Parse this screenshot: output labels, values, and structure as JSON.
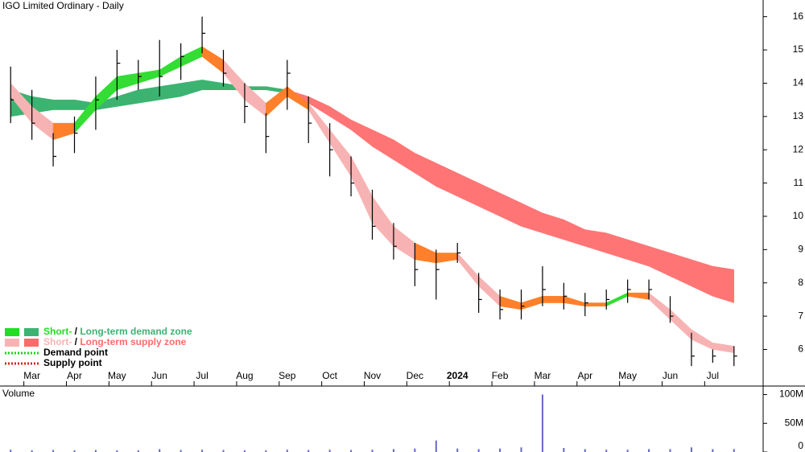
{
  "chart_data": [
    {
      "type": "ohlc",
      "title": "IGO Limited Ordinary - Daily",
      "color": "#000000",
      "categories": [
        null,
        "Mar",
        null,
        "Apr",
        null,
        "May",
        null,
        "Jun",
        null,
        "Jul",
        null,
        "Aug",
        null,
        "Sep",
        null,
        "Oct",
        null,
        "Nov",
        null,
        "Dec",
        null,
        "2024",
        null,
        "Feb",
        null,
        "Mar",
        null,
        "Apr",
        null,
        "May",
        null,
        "Jun",
        null,
        "Jul",
        null
      ],
      "values": [
        13.5,
        12.8,
        11.8,
        12.5,
        13.5,
        14.6,
        14.2,
        14.2,
        14.8,
        15.5,
        14.3,
        13.3,
        12.4,
        14.3,
        12.8,
        12.0,
        11.0,
        9.7,
        9.1,
        8.4,
        8.4,
        8.9,
        7.5,
        7.2,
        7.3,
        7.8,
        7.6,
        7.4,
        7.5,
        7.8,
        7.8,
        7.0,
        5.8,
        5.8,
        5.8
      ],
      "high": [
        14.5,
        13.8,
        12.5,
        13.0,
        14.2,
        15.0,
        14.7,
        15.3,
        15.2,
        16.0,
        15.0,
        14.0,
        13.1,
        14.7,
        13.6,
        12.8,
        11.8,
        10.8,
        9.8,
        9.2,
        9.0,
        9.2,
        8.3,
        7.8,
        7.8,
        8.5,
        8.0,
        7.7,
        7.8,
        8.1,
        8.1,
        7.6,
        6.5,
        6.0,
        6.1
      ],
      "low": [
        12.8,
        12.3,
        11.5,
        11.9,
        12.6,
        13.5,
        13.8,
        13.6,
        14.1,
        14.9,
        13.9,
        12.8,
        11.9,
        13.2,
        12.2,
        11.2,
        10.6,
        9.3,
        8.7,
        7.9,
        7.5,
        8.6,
        7.1,
        6.9,
        6.9,
        7.3,
        7.2,
        7.0,
        7.2,
        7.4,
        7.5,
        6.8,
        5.5,
        5.6,
        5.5
      ],
      "long_term_zone": {
        "upper": [
          13.8,
          13.6,
          13.5,
          13.5,
          13.4,
          13.6,
          13.8,
          13.9,
          14.0,
          14.1,
          14.0,
          13.9,
          13.9,
          13.8,
          13.6,
          13.3,
          12.9,
          12.6,
          12.3,
          11.9,
          11.6,
          11.3,
          11.0,
          10.7,
          10.4,
          10.1,
          9.9,
          9.6,
          9.5,
          9.3,
          9.1,
          8.9,
          8.7,
          8.5,
          8.4
        ],
        "lower": [
          13.0,
          13.1,
          13.2,
          13.2,
          13.2,
          13.3,
          13.4,
          13.5,
          13.6,
          13.8,
          13.8,
          13.8,
          13.8,
          13.7,
          13.4,
          13.0,
          12.6,
          12.1,
          11.7,
          11.3,
          10.9,
          10.6,
          10.3,
          10.0,
          9.7,
          9.5,
          9.3,
          9.1,
          8.9,
          8.7,
          8.5,
          8.2,
          7.9,
          7.6,
          7.4
        ],
        "colors": [
          "#3cb371",
          "#3cb371",
          "#3cb371",
          "#3cb371",
          "#3cb371",
          "#3cb371",
          "#3cb371",
          "#3cb371",
          "#3cb371",
          "#3cb371",
          "#3cb371",
          "#3cb371",
          "#3cb371",
          "#ff7575",
          "#ff7575",
          "#ff7575",
          "#ff7575",
          "#ff7575",
          "#ff7575",
          "#ff7575",
          "#ff7575",
          "#ff7575",
          "#ff7575",
          "#ff7575",
          "#ff7575",
          "#ff7575",
          "#ff7575",
          "#ff7575",
          "#ff7575",
          "#ff7575",
          "#ff7575",
          "#ff7575",
          "#ff7575",
          "#ff7575"
        ]
      },
      "short_term_zone": {
        "upper": [
          14.0,
          13.3,
          12.8,
          12.8,
          13.6,
          14.2,
          14.3,
          14.4,
          14.8,
          15.1,
          14.7,
          14.0,
          13.4,
          13.9,
          13.4,
          12.6,
          11.8,
          10.6,
          9.7,
          9.2,
          8.9,
          8.9,
          8.2,
          7.6,
          7.4,
          7.6,
          7.6,
          7.4,
          7.4,
          7.7,
          7.7,
          7.2,
          6.6,
          6.2,
          6.1
        ],
        "lower": [
          13.6,
          12.8,
          12.3,
          12.5,
          13.2,
          13.8,
          14.0,
          14.2,
          14.5,
          14.8,
          14.3,
          13.5,
          13.0,
          13.6,
          13.2,
          12.2,
          11.2,
          9.8,
          9.1,
          8.7,
          8.6,
          8.7,
          7.9,
          7.3,
          7.2,
          7.4,
          7.4,
          7.3,
          7.3,
          7.6,
          7.5,
          6.9,
          6.3,
          6.0,
          5.9
        ],
        "colors": [
          "#f7b3b3",
          "#f7b3b3",
          "#ff7f2a",
          "#33dd33",
          "#33dd33",
          "#33dd33",
          "#33dd33",
          "#33dd33",
          "#33dd33",
          "#ff7f2a",
          "#f7b3b3",
          "#f7b3b3",
          "#ff7f2a",
          "#ff7f2a",
          "#f7b3b3",
          "#f7b3b3",
          "#f7b3b3",
          "#f7b3b3",
          "#f7b3b3",
          "#ff7f2a",
          "#ff7f2a",
          "#f7b3b3",
          "#f7b3b3",
          "#ff7f2a",
          "#ff7f2a",
          "#ff7f2a",
          "#ff7f2a",
          "#ff7f2a",
          "#33dd33",
          "#ff7f2a",
          "#f7b3b3",
          "#f7b3b3",
          "#f7b3b3",
          "#f7b3b3"
        ]
      },
      "ylim": [
        4.9,
        16.5
      ],
      "yticks": [
        6,
        7,
        8,
        9,
        10,
        11,
        12,
        13,
        14,
        15,
        16
      ],
      "legend_position": "lower left",
      "legend": [
        {
          "short": "Short-",
          "sep": " / ",
          "long": "Long-term demand zone",
          "short_color": "#22dd22",
          "long_color": "#3cb371"
        },
        {
          "short": "Short-",
          "sep": " / ",
          "long": "Long-term supply zone",
          "short_color": "#f7b3b3",
          "long_color": "#ff6b6b"
        },
        {
          "label": "Demand point",
          "color": "#22cc22"
        },
        {
          "label": "Supply point",
          "color": "#dd2222"
        }
      ]
    },
    {
      "type": "bar",
      "title": "Volume",
      "color": "#6666cc",
      "values": [
        4000000,
        3000000,
        3500000,
        3000000,
        3500000,
        3000000,
        3000000,
        5000000,
        3500000,
        4000000,
        3500000,
        3000000,
        3000000,
        4000000,
        3500000,
        4000000,
        3500000,
        4000000,
        5000000,
        6000000,
        20000000,
        6000000,
        5000000,
        6000000,
        8000000,
        100000000,
        7000000,
        5000000,
        4000000,
        4000000,
        5000000,
        5000000,
        8000000,
        5000000,
        5000000
      ],
      "ylim": [
        0,
        112000000
      ],
      "yticks": [
        {
          "value": 0,
          "label": "0"
        },
        {
          "value": 50000000,
          "label": "50M"
        },
        {
          "value": 100000000,
          "label": "100M"
        }
      ]
    }
  ]
}
